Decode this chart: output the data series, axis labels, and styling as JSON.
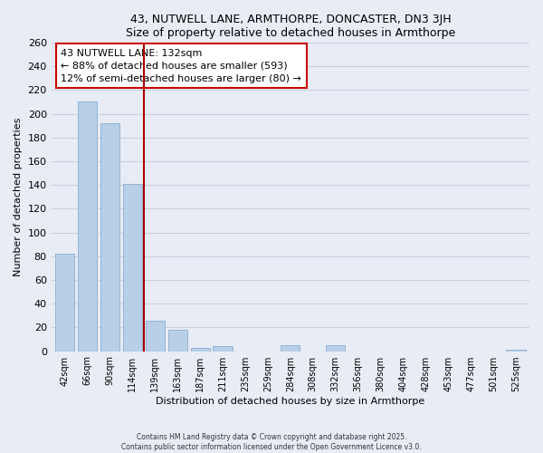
{
  "title": "43, NUTWELL LANE, ARMTHORPE, DONCASTER, DN3 3JH",
  "subtitle": "Size of property relative to detached houses in Armthorpe",
  "xlabel": "Distribution of detached houses by size in Armthorpe",
  "ylabel": "Number of detached properties",
  "bar_labels": [
    "42sqm",
    "66sqm",
    "90sqm",
    "114sqm",
    "139sqm",
    "163sqm",
    "187sqm",
    "211sqm",
    "235sqm",
    "259sqm",
    "284sqm",
    "308sqm",
    "332sqm",
    "356sqm",
    "380sqm",
    "404sqm",
    "428sqm",
    "453sqm",
    "477sqm",
    "501sqm",
    "525sqm"
  ],
  "bar_values": [
    82,
    210,
    192,
    141,
    26,
    18,
    3,
    4,
    0,
    0,
    5,
    0,
    5,
    0,
    0,
    0,
    0,
    0,
    0,
    0,
    1
  ],
  "bar_color": "#b8cfe8",
  "bar_edge_color": "#8aaed0",
  "vline_x": 3.5,
  "vline_color": "#aa0000",
  "annotation_line1": "43 NUTWELL LANE: 132sqm",
  "annotation_line2": "← 88% of detached houses are smaller (593)",
  "annotation_line3": "12% of semi-detached houses are larger (80) →",
  "annotation_box_color": "#cc0000",
  "ylim": [
    0,
    260
  ],
  "yticks": [
    0,
    20,
    40,
    60,
    80,
    100,
    120,
    140,
    160,
    180,
    200,
    220,
    240,
    260
  ],
  "footer_line1": "Contains HM Land Registry data © Crown copyright and database right 2025.",
  "footer_line2": "Contains public sector information licensed under the Open Government Licence v3.0.",
  "bg_color": "#e8ecf5",
  "grid_color": "#c8d0e0"
}
